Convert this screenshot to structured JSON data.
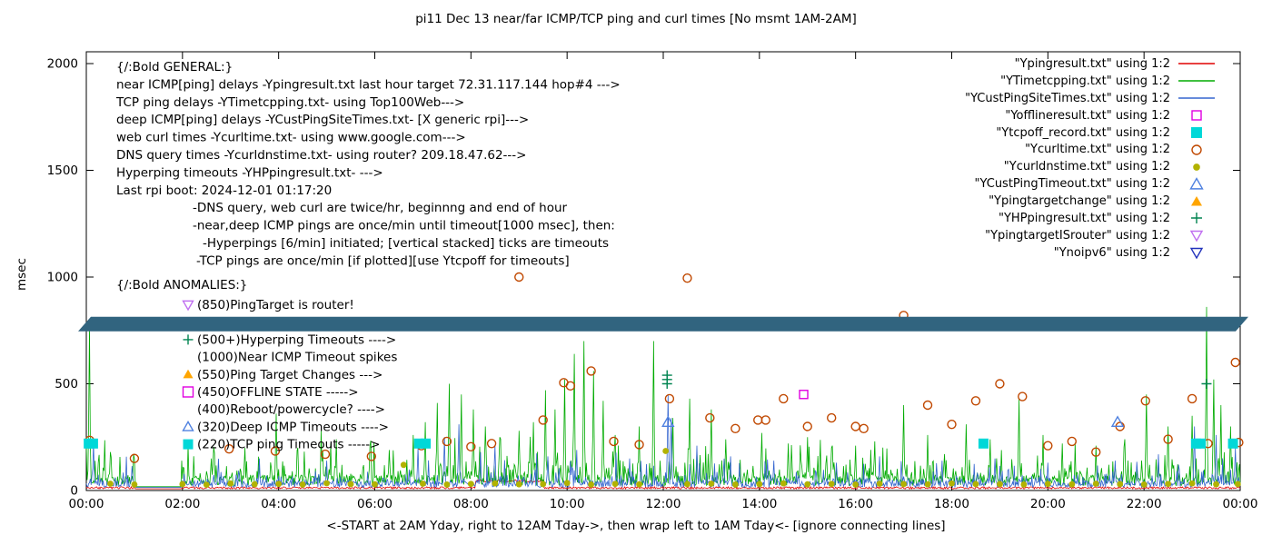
{
  "chart_data": {
    "type": "time-series line + scatter",
    "title": "pi11 Dec 13  near/far ICMP/TCP ping and curl times [No msmt 1AM-2AM]",
    "x_axis": {
      "label": "<-START at 2AM Yday, right to 12AM Tday->, then wrap left to 1AM Tday<- [ignore connecting lines]",
      "ticks": [
        "00:00",
        "02:00",
        "04:00",
        "06:00",
        "08:00",
        "10:00",
        "12:00",
        "14:00",
        "16:00",
        "18:00",
        "20:00",
        "22:00",
        "00:00"
      ],
      "hours_range": [
        0,
        24
      ]
    },
    "y_axis": {
      "label": "msec",
      "ticks": [
        0,
        500,
        1000,
        1500,
        2000
      ],
      "range": [
        0,
        2000
      ]
    },
    "legend": [
      {
        "label": "\"Ypingresult.txt\" using 1:2",
        "symbol": "line",
        "color": "#e00000"
      },
      {
        "label": "\"YTimetcpping.txt\" using 1:2",
        "symbol": "line",
        "color": "#00ab00"
      },
      {
        "label": "\"YCustPingSiteTimes.txt\" using 1:2",
        "symbol": "line",
        "color": "#3465cf"
      },
      {
        "label": "\"Yofflineresult.txt\" using 1:2",
        "symbol": "square-open",
        "color": "#e000e0"
      },
      {
        "label": "\"Ytcpoff_record.txt\" using 1:2",
        "symbol": "square-filled",
        "color": "#00d8d8"
      },
      {
        "label": "\"Ycurltime.txt\" using 1:2",
        "symbol": "circle-open",
        "color": "#c04800"
      },
      {
        "label": "\"Ycurldnstime.txt\" using 1:2",
        "symbol": "circle-filled",
        "color": "#b2b200"
      },
      {
        "label": "\"YCustPingTimeout.txt\" using 1:2",
        "symbol": "triangle-open",
        "color": "#4f81e0"
      },
      {
        "label": "\"Ypingtargetchange\" using 1:2",
        "symbol": "triangle-filled",
        "color": "#ffa500"
      },
      {
        "label": "\"YHPpingresult.txt\" using 1:2",
        "symbol": "plus",
        "color": "#008450"
      },
      {
        "label": "\"YpingtargetISrouter\" using 1:2",
        "symbol": "triangle-down-open",
        "color": "#c070f0"
      },
      {
        "label": "\"Ynoipv6\" using 1:2",
        "symbol": "triangle-down-open",
        "color": "#2233bb"
      }
    ],
    "general_notes": [
      {
        "text": "{/:Bold GENERAL:}",
        "indent": 0
      },
      {
        "text": "near ICMP[ping] delays -Ypingresult.txt last hour target 72.31.117.144 hop#4 --->",
        "indent": 0
      },
      {
        "text": "TCP ping delays -YTimetcpping.txt- using Top100Web--->",
        "indent": 0
      },
      {
        "text": "deep ICMP[ping] delays -YCustPingSiteTimes.txt- [X generic rpi]--->",
        "indent": 0
      },
      {
        "text": "web curl times -Ycurltime.txt- using www.google.com--->",
        "indent": 0
      },
      {
        "text": "DNS query times -Ycurldnstime.txt- using router? 209.18.47.62--->",
        "indent": 0
      },
      {
        "text": "Hyperping timeouts -YHPpingresult.txt- --->",
        "indent": 0
      },
      {
        "text": "Last rpi boot: 2024-12-01 01:17:20",
        "indent": 0
      },
      {
        "text": "-DNS query, web curl are twice/hr, beginnng and end of hour",
        "indent": 84
      },
      {
        "text": "-near,deep ICMP pings are once/min until timeout[1000 msec], then:",
        "indent": 84
      },
      {
        "text": "-Hyperpings [6/min] initiated; [vertical stacked] ticks are timeouts",
        "indent": 95
      },
      {
        "text": "-TCP pings are once/min [if plotted][use Ytcpoff for timeouts]",
        "indent": 88
      }
    ],
    "anomalies_header": "{/:Bold ANOMALIES:}",
    "anomalies": [
      {
        "symbol": "triangle-down-open",
        "color": "#c070f0",
        "text": "(850)PingTarget is router!"
      },
      {
        "symbol": "",
        "color": "",
        "text": "",
        "obscured_by_band": true
      },
      {
        "symbol": "plus",
        "color": "#008450",
        "text": "(500+)Hyperping Timeouts ---->"
      },
      {
        "symbol": "",
        "color": "",
        "text": "(1000)Near ICMP Timeout spikes"
      },
      {
        "symbol": "triangle-filled",
        "color": "#ffa500",
        "text": "(550)Ping Target Changes --->"
      },
      {
        "symbol": "square-open",
        "color": "#e000e0",
        "text": "(450)OFFLINE STATE ----->"
      },
      {
        "symbol": "",
        "color": "",
        "text": "(400)Reboot/powercycle? ---->"
      },
      {
        "symbol": "triangle-open",
        "color": "#4f81e0",
        "text": "(320)Deep ICMP Timeouts ---->"
      },
      {
        "symbol": "square-filled",
        "color": "#00d8d8",
        "text": "(220)TCP ping Timeouts ----->"
      }
    ],
    "line_series": [
      {
        "name": "Ypingresult",
        "color": "#e00000",
        "seed": 3,
        "baseline": 11,
        "noise": 5,
        "gap": [
          1.03,
          1.97
        ],
        "gap_level": 8,
        "elevated": [
          [
            8.1,
            9.5,
            45
          ]
        ],
        "spikes": []
      },
      {
        "name": "YTimetcpping",
        "color": "#00ab00",
        "seed": 7,
        "baseline": 40,
        "noise": 26,
        "bump": [
          0.3,
          85
        ],
        "spike2": [
          0.07,
          150
        ],
        "gap": [
          1.03,
          1.97
        ],
        "gap_level": 18,
        "spikes": [
          [
            0.06,
            770
          ],
          [
            0.5,
            180
          ],
          [
            2.6,
            150
          ],
          [
            3.3,
            200
          ],
          [
            3.95,
            360
          ],
          [
            4.4,
            200
          ],
          [
            5.2,
            240
          ],
          [
            5.9,
            210
          ],
          [
            6.3,
            190
          ],
          [
            6.8,
            260
          ],
          [
            7.05,
            320
          ],
          [
            7.3,
            410
          ],
          [
            7.55,
            500
          ],
          [
            7.8,
            450
          ],
          [
            8.05,
            380
          ],
          [
            8.3,
            300
          ],
          [
            8.6,
            250
          ],
          [
            9.0,
            280
          ],
          [
            9.3,
            320
          ],
          [
            9.55,
            470
          ],
          [
            9.75,
            380
          ],
          [
            9.95,
            520
          ],
          [
            10.15,
            640
          ],
          [
            10.35,
            700
          ],
          [
            10.55,
            560
          ],
          [
            10.75,
            420
          ],
          [
            11.0,
            260
          ],
          [
            11.5,
            300
          ],
          [
            11.8,
            700
          ],
          [
            12.2,
            340
          ],
          [
            12.55,
            430
          ],
          [
            13.0,
            380
          ],
          [
            13.3,
            240
          ],
          [
            14.05,
            270
          ],
          [
            14.6,
            220
          ],
          [
            15.0,
            250
          ],
          [
            15.5,
            200
          ],
          [
            16.0,
            210
          ],
          [
            16.4,
            230
          ],
          [
            17.0,
            400
          ],
          [
            17.5,
            260
          ],
          [
            18.3,
            310
          ],
          [
            18.8,
            240
          ],
          [
            19.4,
            430
          ],
          [
            19.9,
            260
          ],
          [
            20.3,
            220
          ],
          [
            21.0,
            210
          ],
          [
            21.6,
            240
          ],
          [
            22.05,
            450
          ],
          [
            22.5,
            300
          ],
          [
            23.0,
            350
          ],
          [
            23.3,
            860
          ],
          [
            23.45,
            520
          ],
          [
            23.6,
            400
          ],
          [
            23.8,
            300
          ]
        ]
      },
      {
        "name": "YCustPingSiteTimes",
        "color": "#3465cf",
        "seed": 13,
        "baseline": 26,
        "noise": 16,
        "bump": [
          0.22,
          55
        ],
        "spike2": [
          0.05,
          90
        ],
        "gap": [
          1.03,
          1.97
        ],
        "gap_level": 14,
        "spikes": [
          [
            0.15,
            230
          ],
          [
            3.6,
            150
          ],
          [
            5.0,
            140
          ],
          [
            6.9,
            200
          ],
          [
            7.45,
            250
          ],
          [
            7.75,
            310
          ],
          [
            8.2,
            180
          ],
          [
            8.5,
            210
          ],
          [
            9.6,
            160
          ],
          [
            10.2,
            190
          ],
          [
            11.3,
            150
          ],
          [
            12.1,
            450
          ],
          [
            12.17,
            340
          ],
          [
            12.7,
            210
          ],
          [
            13.4,
            160
          ],
          [
            14.3,
            140
          ],
          [
            15.6,
            130
          ],
          [
            16.5,
            160
          ],
          [
            17.8,
            140
          ],
          [
            18.9,
            150
          ],
          [
            20.0,
            130
          ],
          [
            21.4,
            140
          ],
          [
            22.3,
            170
          ],
          [
            23.05,
            300
          ],
          [
            23.5,
            260
          ],
          [
            23.9,
            200
          ]
        ]
      }
    ],
    "scatter_series": [
      {
        "name": "Ycurltime",
        "symbol": "circle-open",
        "color": "#c04800",
        "points": [
          [
            0.07,
            235
          ],
          [
            1.0,
            150
          ],
          [
            2.97,
            195
          ],
          [
            3.93,
            185
          ],
          [
            4.97,
            170
          ],
          [
            5.93,
            160
          ],
          [
            6.97,
            210
          ],
          [
            7.5,
            230
          ],
          [
            8.0,
            205
          ],
          [
            8.43,
            220
          ],
          [
            9.0,
            1000
          ],
          [
            9.5,
            330
          ],
          [
            9.93,
            505
          ],
          [
            10.07,
            490
          ],
          [
            10.5,
            560
          ],
          [
            10.97,
            230
          ],
          [
            11.5,
            215
          ],
          [
            12.13,
            430
          ],
          [
            12.5,
            995
          ],
          [
            12.97,
            340
          ],
          [
            13.5,
            290
          ],
          [
            13.97,
            330
          ],
          [
            14.13,
            330
          ],
          [
            14.5,
            430
          ],
          [
            15.0,
            300
          ],
          [
            15.5,
            340
          ],
          [
            16.0,
            300
          ],
          [
            16.17,
            290
          ],
          [
            17.0,
            820
          ],
          [
            17.5,
            400
          ],
          [
            18.0,
            310
          ],
          [
            18.5,
            420
          ],
          [
            19.0,
            500
          ],
          [
            19.47,
            440
          ],
          [
            20.0,
            210
          ],
          [
            20.5,
            230
          ],
          [
            21.0,
            180
          ],
          [
            21.5,
            300
          ],
          [
            22.03,
            420
          ],
          [
            22.5,
            240
          ],
          [
            23.0,
            430
          ],
          [
            23.33,
            220
          ],
          [
            23.9,
            600
          ],
          [
            23.97,
            225
          ]
        ]
      },
      {
        "name": "Ycurldnstime",
        "symbol": "circle-filled",
        "color": "#b2b200",
        "points": [
          [
            0.5,
            32
          ],
          [
            1.0,
            28
          ],
          [
            2.0,
            30
          ],
          [
            2.5,
            27
          ],
          [
            3.0,
            33
          ],
          [
            3.5,
            29
          ],
          [
            4.0,
            31
          ],
          [
            4.5,
            28
          ],
          [
            5.0,
            34
          ],
          [
            5.5,
            30
          ],
          [
            6.0,
            29
          ],
          [
            6.6,
            120
          ],
          [
            7.0,
            32
          ],
          [
            7.5,
            28
          ],
          [
            8.0,
            31
          ],
          [
            8.5,
            33
          ],
          [
            9.0,
            29
          ],
          [
            9.5,
            30
          ],
          [
            10.0,
            35
          ],
          [
            10.5,
            28
          ],
          [
            11.0,
            31
          ],
          [
            11.5,
            29
          ],
          [
            12.05,
            185
          ],
          [
            12.5,
            30
          ],
          [
            13.0,
            32
          ],
          [
            13.5,
            28
          ],
          [
            14.0,
            30
          ],
          [
            14.5,
            33
          ],
          [
            15.0,
            29
          ],
          [
            15.5,
            31
          ],
          [
            16.0,
            28
          ],
          [
            16.5,
            32
          ],
          [
            17.0,
            30
          ],
          [
            17.5,
            29
          ],
          [
            18.0,
            33
          ],
          [
            18.5,
            30
          ],
          [
            19.0,
            30
          ],
          [
            19.5,
            28
          ],
          [
            20.0,
            31
          ],
          [
            20.5,
            29
          ],
          [
            21.0,
            32
          ],
          [
            21.5,
            30
          ],
          [
            22.0,
            28
          ],
          [
            22.5,
            31
          ],
          [
            23.0,
            33
          ],
          [
            23.5,
            29
          ],
          [
            23.95,
            30
          ]
        ]
      },
      {
        "name": "Ytcpoff_record",
        "symbol": "square-filled",
        "color": "#00d8d8",
        "points": [
          [
            0.05,
            220
          ],
          [
            0.14,
            220
          ],
          [
            6.92,
            220
          ],
          [
            7.06,
            220
          ],
          [
            18.66,
            220
          ],
          [
            23.08,
            220
          ],
          [
            23.18,
            220
          ],
          [
            23.85,
            220
          ]
        ]
      },
      {
        "name": "Yofflineresult",
        "symbol": "square-open",
        "color": "#e000e0",
        "points": [
          [
            14.92,
            450
          ]
        ]
      },
      {
        "name": "YCustPingTimeout",
        "symbol": "triangle-open",
        "color": "#4f81e0",
        "points": [
          [
            12.1,
            320
          ],
          [
            21.45,
            320
          ]
        ]
      },
      {
        "name": "YHPpingresult",
        "symbol": "plus",
        "color": "#008450",
        "points": [
          [
            12.08,
            500
          ],
          [
            12.08,
            520
          ],
          [
            12.08,
            540
          ],
          [
            23.3,
            500
          ]
        ]
      }
    ],
    "band": {
      "name": "noipv6-band",
      "value": 780,
      "color": "#31647f"
    }
  }
}
